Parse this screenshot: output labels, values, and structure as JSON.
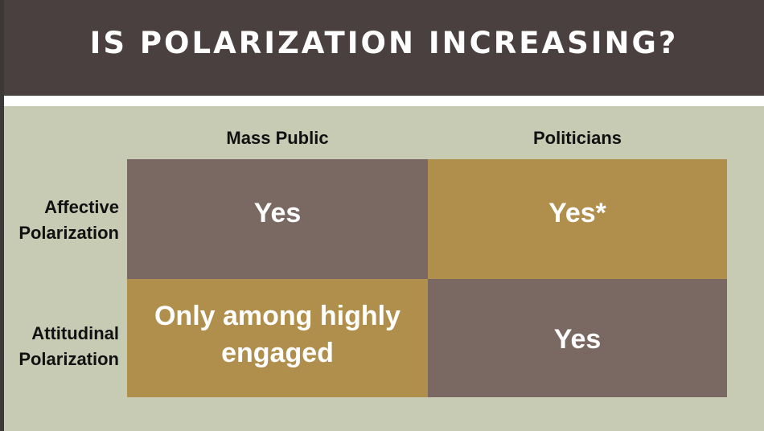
{
  "slide": {
    "title": "IS POLARIZATION INCREASING?"
  },
  "table": {
    "columns": [
      "Mass Public",
      "Politicians"
    ],
    "rows": [
      {
        "label_line1": "Affective",
        "label_line2": "Polarization",
        "cells": [
          "Yes",
          "Yes*"
        ]
      },
      {
        "label_line1": "Attitudinal",
        "label_line2": "Polarization",
        "cells": [
          "Only among highly engaged",
          "Yes"
        ]
      }
    ]
  },
  "colors": {
    "title_bar": "#4a4040",
    "background": "#c8cbb4",
    "taupe_cell": "#7a6862",
    "gold_cell": "#b08f4c"
  }
}
